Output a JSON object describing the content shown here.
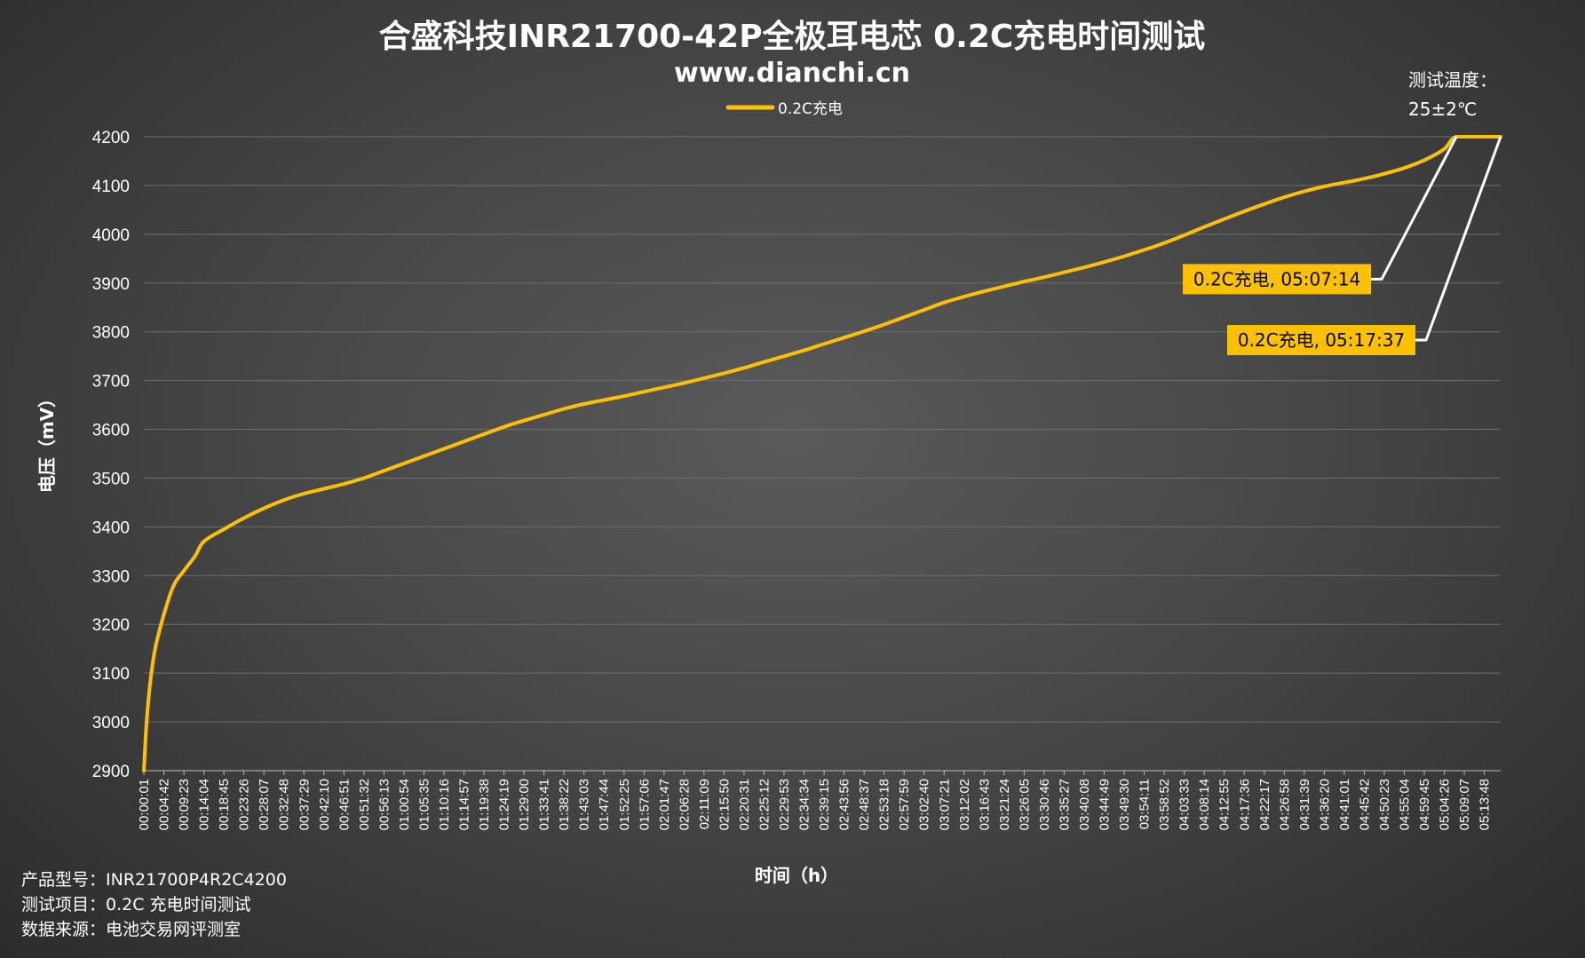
{
  "chart_data": {
    "type": "line",
    "title": "合盛科技INR21700-42P全极耳电芯 0.2C充电时间测试",
    "subtitle": "www.dianchi.cn",
    "xlabel": "时间（h）",
    "ylabel": "电压（mV）",
    "ylim": [
      2900,
      4200
    ],
    "yticks": [
      "4200",
      "4100",
      "4000",
      "3900",
      "3800",
      "3700",
      "3600",
      "3500",
      "3400",
      "3300",
      "3200",
      "3100",
      "3000",
      "2900"
    ],
    "xlim_seconds": [
      1,
      19057
    ],
    "categories": [
      "00:00:01",
      "00:04:42",
      "00:09:23",
      "00:14:04",
      "00:18:45",
      "00:23:26",
      "00:28:07",
      "00:32:48",
      "00:37:29",
      "00:42:10",
      "00:46:51",
      "00:51:32",
      "00:56:13",
      "01:00:54",
      "01:05:35",
      "01:10:16",
      "01:14:57",
      "01:19:38",
      "01:24:19",
      "01:29:00",
      "01:33:41",
      "01:38:22",
      "01:43:03",
      "01:47:44",
      "01:52:25",
      "01:57:06",
      "02:01:47",
      "02:06:28",
      "02:11:09",
      "02:15:50",
      "02:20:31",
      "02:25:12",
      "02:29:53",
      "02:34:34",
      "02:39:15",
      "02:43:56",
      "02:48:37",
      "02:53:18",
      "02:57:59",
      "03:02:40",
      "03:07:21",
      "03:12:02",
      "03:16:43",
      "03:21:24",
      "03:26:05",
      "03:30:46",
      "03:35:27",
      "03:40:08",
      "03:44:49",
      "03:49:30",
      "03:54:11",
      "03:58:52",
      "04:03:33",
      "04:08:14",
      "04:12:55",
      "04:17:36",
      "04:22:17",
      "04:26:58",
      "04:31:39",
      "04:36:20",
      "04:41:01",
      "04:45:42",
      "04:50:23",
      "04:55:04",
      "04:59:45",
      "05:04:26",
      "05:09:07",
      "05:13:48"
    ],
    "grid": true,
    "legend_position": "top-center",
    "series": [
      {
        "name": "0.2C充电",
        "color": "#ffc000",
        "points": [
          [
            "00:00:01",
            2900
          ],
          [
            "00:00:40",
            3000
          ],
          [
            "00:01:30",
            3080
          ],
          [
            "00:02:40",
            3150
          ],
          [
            "00:04:42",
            3220
          ],
          [
            "00:07:00",
            3280
          ],
          [
            "00:09:23",
            3310
          ],
          [
            "00:12:00",
            3340
          ],
          [
            "00:14:04",
            3370
          ],
          [
            "00:18:45",
            3395
          ],
          [
            "00:23:26",
            3418
          ],
          [
            "00:28:07",
            3438
          ],
          [
            "00:32:48",
            3455
          ],
          [
            "00:37:29",
            3468
          ],
          [
            "00:42:10",
            3478
          ],
          [
            "00:46:51",
            3488
          ],
          [
            "00:51:32",
            3500
          ],
          [
            "00:56:13",
            3515
          ],
          [
            "01:00:54",
            3530
          ],
          [
            "01:05:35",
            3545
          ],
          [
            "01:10:16",
            3560
          ],
          [
            "01:14:57",
            3575
          ],
          [
            "01:19:38",
            3590
          ],
          [
            "01:24:19",
            3605
          ],
          [
            "01:29:00",
            3618
          ],
          [
            "01:33:41",
            3630
          ],
          [
            "01:38:22",
            3642
          ],
          [
            "01:43:03",
            3652
          ],
          [
            "01:47:44",
            3660
          ],
          [
            "01:52:25",
            3668
          ],
          [
            "01:57:06",
            3677
          ],
          [
            "02:01:47",
            3686
          ],
          [
            "02:06:28",
            3695
          ],
          [
            "02:11:09",
            3705
          ],
          [
            "02:15:50",
            3715
          ],
          [
            "02:20:31",
            3726
          ],
          [
            "02:25:12",
            3738
          ],
          [
            "02:29:53",
            3750
          ],
          [
            "02:34:34",
            3762
          ],
          [
            "02:39:15",
            3775
          ],
          [
            "02:43:56",
            3788
          ],
          [
            "02:48:37",
            3801
          ],
          [
            "02:53:18",
            3815
          ],
          [
            "02:57:59",
            3830
          ],
          [
            "03:02:40",
            3845
          ],
          [
            "03:07:21",
            3860
          ],
          [
            "03:12:02",
            3872
          ],
          [
            "03:16:43",
            3883
          ],
          [
            "03:21:24",
            3893
          ],
          [
            "03:26:05",
            3903
          ],
          [
            "03:30:46",
            3912
          ],
          [
            "03:35:27",
            3922
          ],
          [
            "03:40:08",
            3932
          ],
          [
            "03:44:49",
            3943
          ],
          [
            "03:49:30",
            3955
          ],
          [
            "03:54:11",
            3968
          ],
          [
            "03:58:52",
            3982
          ],
          [
            "04:03:33",
            3998
          ],
          [
            "04:08:14",
            4015
          ],
          [
            "04:12:55",
            4031
          ],
          [
            "04:17:36",
            4047
          ],
          [
            "04:22:17",
            4062
          ],
          [
            "04:26:58",
            4076
          ],
          [
            "04:31:39",
            4088
          ],
          [
            "04:36:20",
            4098
          ],
          [
            "04:41:01",
            4106
          ],
          [
            "04:45:42",
            4114
          ],
          [
            "04:50:23",
            4124
          ],
          [
            "04:55:04",
            4136
          ],
          [
            "04:59:45",
            4152
          ],
          [
            "05:04:26",
            4175
          ],
          [
            "05:07:14",
            4200
          ],
          [
            "05:13:48",
            4200
          ],
          [
            "05:17:37",
            4200
          ]
        ]
      }
    ],
    "annotations": [
      {
        "text": "0.2C充电, 05:07:14",
        "x": "05:07:14",
        "y": 4200,
        "label_y": 3908
      },
      {
        "text": "0.2C充电, 05:17:37",
        "x": "05:17:37",
        "y": 4200,
        "label_y": 3783
      }
    ],
    "note": {
      "line1": "测试温度：",
      "line2": "25±2℃"
    },
    "info": [
      "产品型号：INR21700P4R2C4200",
      "测试项目：0.2C 充电时间测试",
      "数据来源：电池交易网评测室"
    ]
  }
}
